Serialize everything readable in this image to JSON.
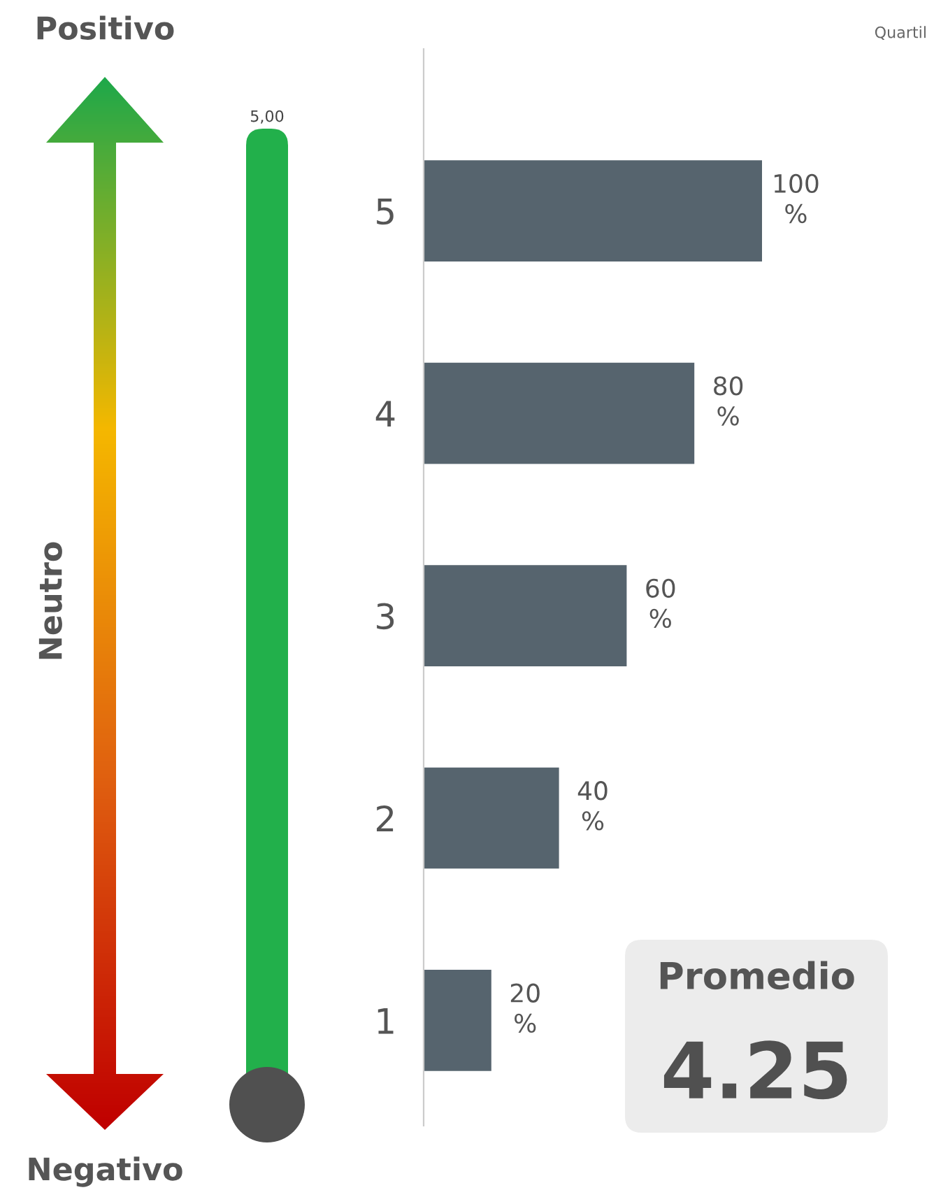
{
  "chart_data": {
    "type": "bar",
    "orientation": "horizontal",
    "categories": [
      "5",
      "4",
      "3",
      "2",
      "1"
    ],
    "values": [
      100,
      80,
      60,
      40,
      20
    ],
    "value_labels": [
      "100\n%",
      "80\n%",
      "60\n%",
      "40\n%",
      "20\n%"
    ],
    "color": "#56646e",
    "grid": false,
    "legend": false,
    "annotations": [
      "Positivo",
      "Neutro",
      "Negativo",
      "5,00",
      "Quartil",
      "Promedio",
      "4.25"
    ]
  }
}
